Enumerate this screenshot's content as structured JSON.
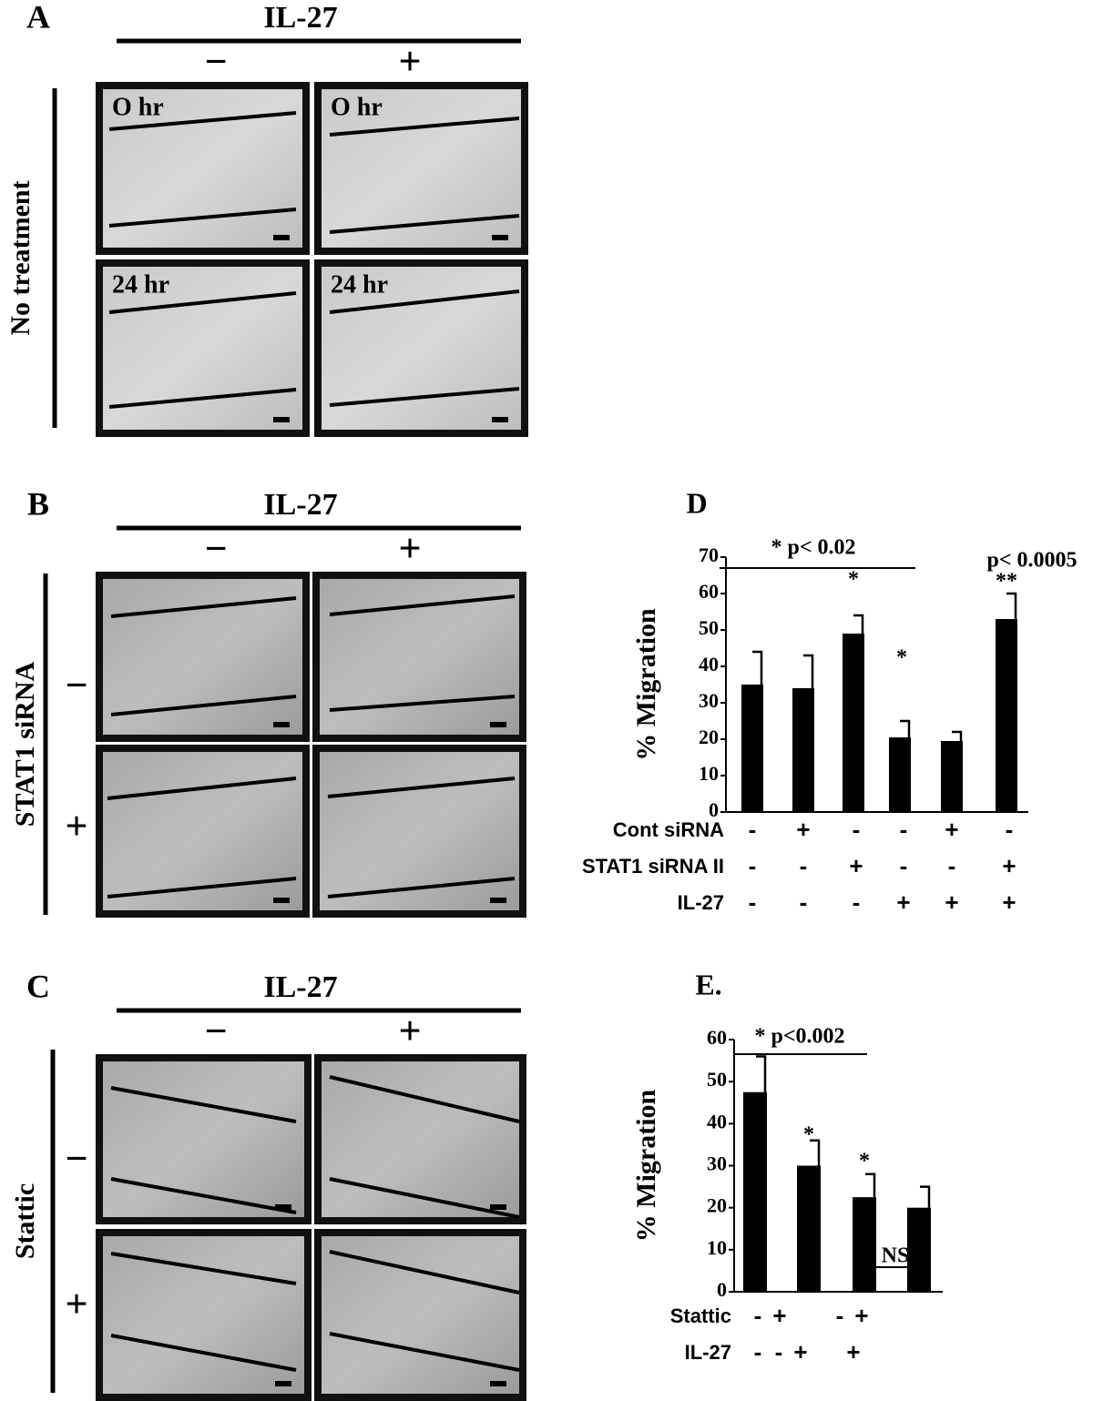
{
  "panels": [
    {
      "letter": "A",
      "header": "IL-27",
      "cols": [
        "−",
        "+"
      ],
      "side": "No treatment",
      "time_labels": [
        "O hr",
        "O hr",
        "24 hr",
        "24 hr"
      ]
    },
    {
      "letter": "B",
      "header": "IL-27",
      "cols": [
        "−",
        "+"
      ],
      "side": "STAT1 siRNA",
      "rows": [
        "−",
        "+"
      ]
    },
    {
      "letter": "C",
      "header": "IL-27",
      "cols": [
        "−",
        "+"
      ],
      "side": "Stattic",
      "rows": [
        "−",
        "+"
      ]
    }
  ],
  "chart_data": [
    {
      "type": "bar",
      "title": "D",
      "ylabel": "% Migration",
      "color": "#000000",
      "categories": [
        null,
        null,
        null,
        null,
        null,
        null
      ],
      "values": [
        35,
        34,
        49,
        20.5,
        19.5,
        53
      ],
      "errors": [
        9,
        9,
        5,
        4.5,
        2.5,
        7
      ],
      "ylim": [
        0,
        70
      ],
      "yticks": [
        0,
        10,
        20,
        30,
        40,
        50,
        60,
        70
      ],
      "conditions": [
        {
          "label": "Cont siRNA",
          "signs": [
            "-",
            "+",
            "-",
            "-",
            "+",
            "-"
          ]
        },
        {
          "label": "STAT1 siRNA II",
          "signs": [
            "-",
            "-",
            "+",
            "-",
            "-",
            "+"
          ]
        },
        {
          "label": "IL-27",
          "signs": [
            "-",
            "-",
            "-",
            "+",
            "+",
            "+"
          ]
        }
      ],
      "annotations": [
        "* p< 0.02",
        "p< 0.0005",
        "**",
        "*",
        "*"
      ]
    },
    {
      "type": "bar",
      "title": "E.",
      "ylabel": "% Migration",
      "color": "#000000",
      "categories": [
        null,
        null,
        null,
        null
      ],
      "values": [
        47.5,
        30,
        22.5,
        20
      ],
      "errors": [
        8.5,
        6,
        5.5,
        5
      ],
      "ylim": [
        0,
        60
      ],
      "yticks": [
        0,
        10,
        20,
        30,
        40,
        50,
        60
      ],
      "conditions": [
        {
          "label": "Stattic",
          "signs": [
            "-",
            "+",
            "-",
            "+"
          ]
        },
        {
          "label": "IL-27",
          "signs": [
            "-",
            "-",
            "+",
            "+"
          ]
        }
      ],
      "annotations": [
        "* p<0.002",
        "NS",
        "*",
        "*"
      ]
    }
  ]
}
